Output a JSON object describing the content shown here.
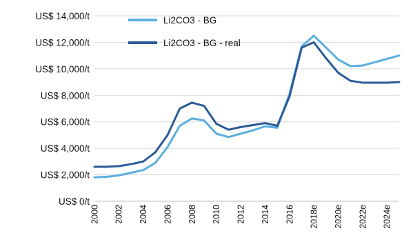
{
  "chart_data": {
    "type": "line",
    "title": "",
    "xlabel": "",
    "ylabel": "",
    "x": [
      2000,
      2001,
      2002,
      2003,
      2004,
      2005,
      2006,
      2007,
      2008,
      2009,
      2010,
      2011,
      2012,
      2013,
      2014,
      2015,
      2016,
      2017,
      2018,
      2019,
      2020,
      2021,
      2022,
      2023,
      2024,
      2025
    ],
    "xlim": [
      2000,
      2025
    ],
    "x_tick_labels": [
      {
        "x": 2000,
        "label": "2000"
      },
      {
        "x": 2002,
        "label": "2002"
      },
      {
        "x": 2004,
        "label": "2004"
      },
      {
        "x": 2006,
        "label": "2006"
      },
      {
        "x": 2008,
        "label": "2008"
      },
      {
        "x": 2010,
        "label": "2010"
      },
      {
        "x": 2012,
        "label": "2012"
      },
      {
        "x": 2014,
        "label": "2014"
      },
      {
        "x": 2016,
        "label": "2016"
      },
      {
        "x": 2018,
        "label": "2018e"
      },
      {
        "x": 2020,
        "label": "2020e"
      },
      {
        "x": 2022,
        "label": "2022e"
      },
      {
        "x": 2024,
        "label": "2024e"
      }
    ],
    "ylim": [
      0,
      14000
    ],
    "y_ticks": [
      {
        "value": 0,
        "label": "US$ 0/t"
      },
      {
        "value": 2000,
        "label": "US$ 2,000/t"
      },
      {
        "value": 4000,
        "label": "US$ 4,000/t"
      },
      {
        "value": 6000,
        "label": "US$ 6,000/t"
      },
      {
        "value": 8000,
        "label": "US$ 8,000/t"
      },
      {
        "value": 10000,
        "label": "US$ 10,000/t"
      },
      {
        "value": 12000,
        "label": "US$ 12,000/t"
      },
      {
        "value": 14000,
        "label": "US$ 14,000/t"
      }
    ],
    "grid": true,
    "legend_position": "top-center",
    "series": [
      {
        "name": "Li2CO3 - BG",
        "color": "#5aaee0",
        "values": [
          1800,
          1850,
          1950,
          2150,
          2350,
          2900,
          4100,
          5700,
          6250,
          6100,
          5100,
          4850,
          5100,
          5350,
          5650,
          5550,
          8100,
          11700,
          12500,
          11600,
          10700,
          10200,
          10250,
          10500,
          10750,
          11000
        ]
      },
      {
        "name": "Li2CO3 - BG - real",
        "color": "#2a5a96",
        "values": [
          2600,
          2600,
          2650,
          2800,
          3000,
          3700,
          5000,
          7000,
          7450,
          7200,
          5850,
          5400,
          5600,
          5750,
          5900,
          5700,
          7900,
          11600,
          12000,
          10800,
          9700,
          9100,
          8950,
          8950,
          8950,
          9000
        ]
      }
    ]
  }
}
